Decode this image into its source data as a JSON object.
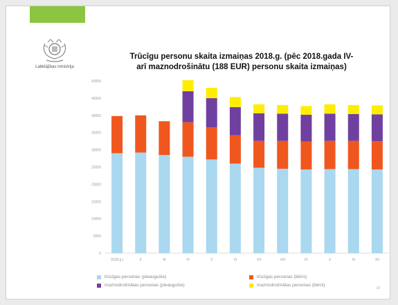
{
  "slide": {
    "logo_text": "Labklājības ministrija",
    "title_line1": "Trūcīgu personu skaita  izmaiņas 2018.g. (pēc 2018.gada IV-",
    "title_line2": "arī maznodrošinātu (188 EUR) personu skaita izmaiņas)",
    "page_number": "19"
  },
  "colors": {
    "accent_tab": "#8cc641",
    "adults_poor": "#a9d8ef",
    "children_poor": "#f0571f",
    "adults_lowincome": "#7040a0",
    "children_lowincome": "#ffed00"
  },
  "chart_data": {
    "type": "bar",
    "stacked": true,
    "categories": [
      "2018.g.I",
      "II",
      "III",
      "IV",
      "V",
      "VI",
      "VII",
      "VIII",
      "IX",
      "X",
      "XI",
      "XII"
    ],
    "y_ticks": [
      "0",
      "5000",
      "10000",
      "15000",
      "20000",
      "25000",
      "30000",
      "35000",
      "40000",
      "45000",
      "50000"
    ],
    "ylim": [
      0,
      50000
    ],
    "grid": false,
    "legend_position": "bottom",
    "series": [
      {
        "name": "trūcīgas personas (pieaugušie)",
        "color_key": "adults_poor",
        "values": [
          29000,
          29200,
          28500,
          28000,
          27200,
          26000,
          24800,
          24500,
          24300,
          24400,
          24400,
          24300
        ]
      },
      {
        "name": "trūcīgas personas (bērni)",
        "color_key": "children_poor",
        "values": [
          10800,
          10800,
          9800,
          10000,
          9300,
          8200,
          7800,
          8100,
          8100,
          8200,
          8200,
          8200
        ]
      },
      {
        "name": "maznodrošinātas personas (pieaugušie)",
        "color_key": "adults_lowincome",
        "values": [
          0,
          0,
          0,
          9000,
          8500,
          8200,
          8000,
          7900,
          7800,
          7900,
          7800,
          7800
        ]
      },
      {
        "name": "maznodrošinātas personas (bērni)",
        "color_key": "children_lowincome",
        "values": [
          0,
          0,
          0,
          3200,
          3000,
          2900,
          2600,
          2500,
          2500,
          2700,
          2600,
          2600
        ]
      }
    ]
  }
}
